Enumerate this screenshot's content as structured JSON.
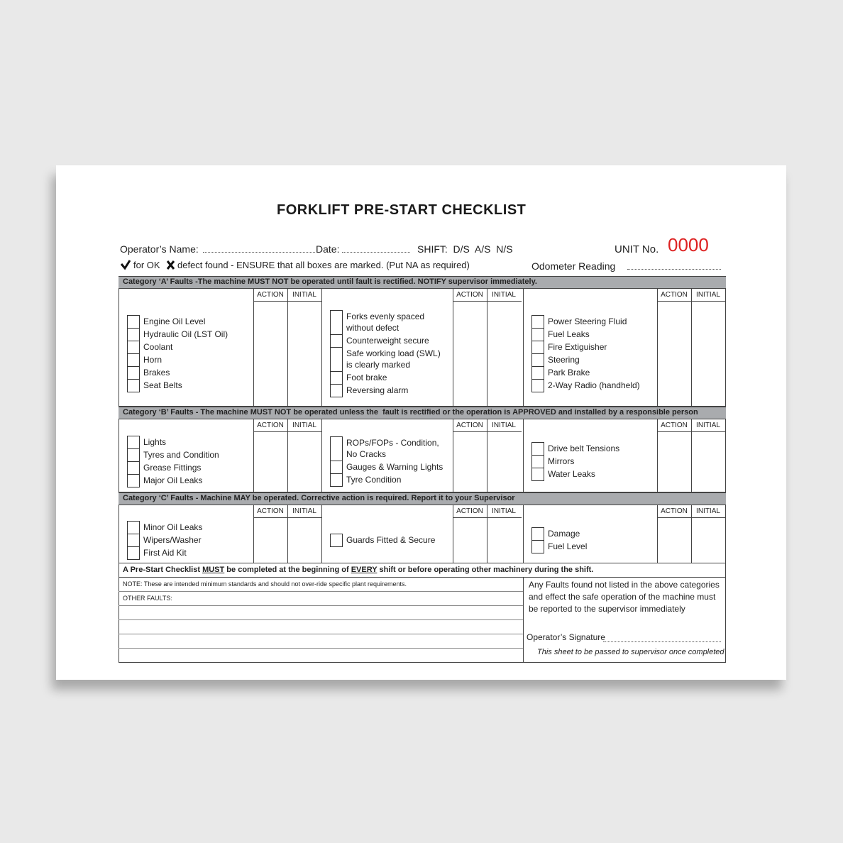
{
  "title": "FORKLIFT PRE-START CHECKLIST",
  "header": {
    "operator_label": "Operator’s Name:",
    "date_label": "Date:",
    "shift": "SHIFT:  D/S  A/S  N/S",
    "unit_label": "UNIT No.",
    "unit_number": "0000",
    "legend_ok": "for OK",
    "legend_defect": "defect found - ENSURE that all boxes are marked. (Put NA as required)",
    "odometer_label": "Odometer Reading"
  },
  "column_headers": [
    "ACTION",
    "INITIAL"
  ],
  "categories": [
    {
      "heading": "Category ‘A’ Faults -The machine MUST NOT be operated until fault is rectified. NOTIFY supervisor immediately.",
      "groups": [
        [
          "Engine Oil Level",
          "Hydraulic Oil (LST Oil)",
          "Coolant",
          "Horn",
          "Brakes",
          "Seat Belts"
        ],
        [
          "Forks evenly spaced\nwithout defect",
          "Counterweight secure",
          "Safe working load (SWL)\nis clearly marked",
          "Foot brake",
          "Reversing alarm"
        ],
        [
          "Power Steering Fluid",
          "Fuel Leaks",
          "Fire Extiguisher",
          "Steering",
          "Park Brake",
          "2-Way Radio (handheld)"
        ]
      ]
    },
    {
      "heading": "Category ‘B’ Faults - The machine MUST NOT be operated unless the  fault is rectified or the operation is APPROVED and installed by a responsible person",
      "groups": [
        [
          "Lights",
          "Tyres and Condition",
          "Grease Fittings",
          "Major Oil Leaks"
        ],
        [
          "ROPs/FOPs - Condition,\nNo Cracks",
          "Gauges & Warning Lights",
          "Tyre Condition"
        ],
        [
          "Drive belt Tensions",
          "Mirrors",
          "Water Leaks"
        ]
      ]
    },
    {
      "heading": "Category ‘C’ Faults - Machine MAY be operated. Corrective action is required. Report it to your Supervisor",
      "groups": [
        [
          "Minor Oil Leaks",
          "Wipers/Washer",
          "First Aid Kit"
        ],
        [
          "Guards Fitted & Secure"
        ],
        [
          "Damage",
          "Fuel Level"
        ]
      ]
    }
  ],
  "footer": {
    "rule_parts": [
      "A Pre-Start Checklist ",
      "MUST",
      " be completed at the beginning of ",
      "EVERY",
      " shift or before operating other machinery during the shift."
    ],
    "note": "NOTE: These are intended minimum standards and should not over-ride specific plant requirements.",
    "other_faults": "OTHER FAULTS:",
    "any_faults": "Any Faults found not listed in the above categories and effect the safe operation of the machine must be reported to the supervisor immediately",
    "signature_label": "Operator’s Signature",
    "pass_note": "This sheet to be passed to supervisor once completed"
  }
}
